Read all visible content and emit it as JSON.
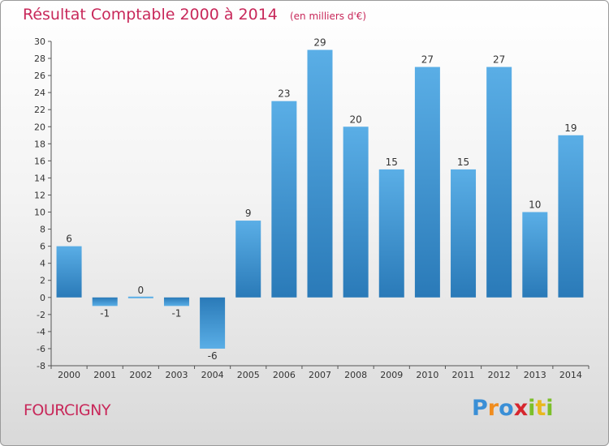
{
  "chart_data": {
    "type": "bar",
    "title": "Résultat Comptable 2000 à 2014",
    "subtitle": "(en milliers d'€)",
    "categories": [
      "2000",
      "2001",
      "2002",
      "2003",
      "2004",
      "2005",
      "2006",
      "2007",
      "2008",
      "2009",
      "2010",
      "2011",
      "2012",
      "2013",
      "2014"
    ],
    "values": [
      6,
      -1,
      0,
      -1,
      -6,
      9,
      23,
      29,
      20,
      15,
      27,
      15,
      27,
      10,
      19
    ],
    "ylim": [
      -8,
      30
    ],
    "yticks": [
      -8,
      -6,
      -4,
      -2,
      0,
      2,
      4,
      6,
      8,
      10,
      12,
      14,
      16,
      18,
      20,
      22,
      24,
      26,
      28,
      30
    ],
    "xlabel": "",
    "ylabel": "",
    "grid": false,
    "colors": {
      "bar_light": "#5aaee6",
      "bar_dark": "#2a7ab8",
      "title": "#c8285a"
    }
  },
  "footer": {
    "commune": "FOURCIGNY"
  },
  "logo": {
    "letters": [
      "P",
      "r",
      "o",
      "x",
      "i",
      "t",
      "i"
    ],
    "colors": [
      "#3a8fd6",
      "#f08c1e",
      "#3a8fd6",
      "#d6262e",
      "#7cbf2a",
      "#e8b81e",
      "#7cbf2a"
    ]
  }
}
